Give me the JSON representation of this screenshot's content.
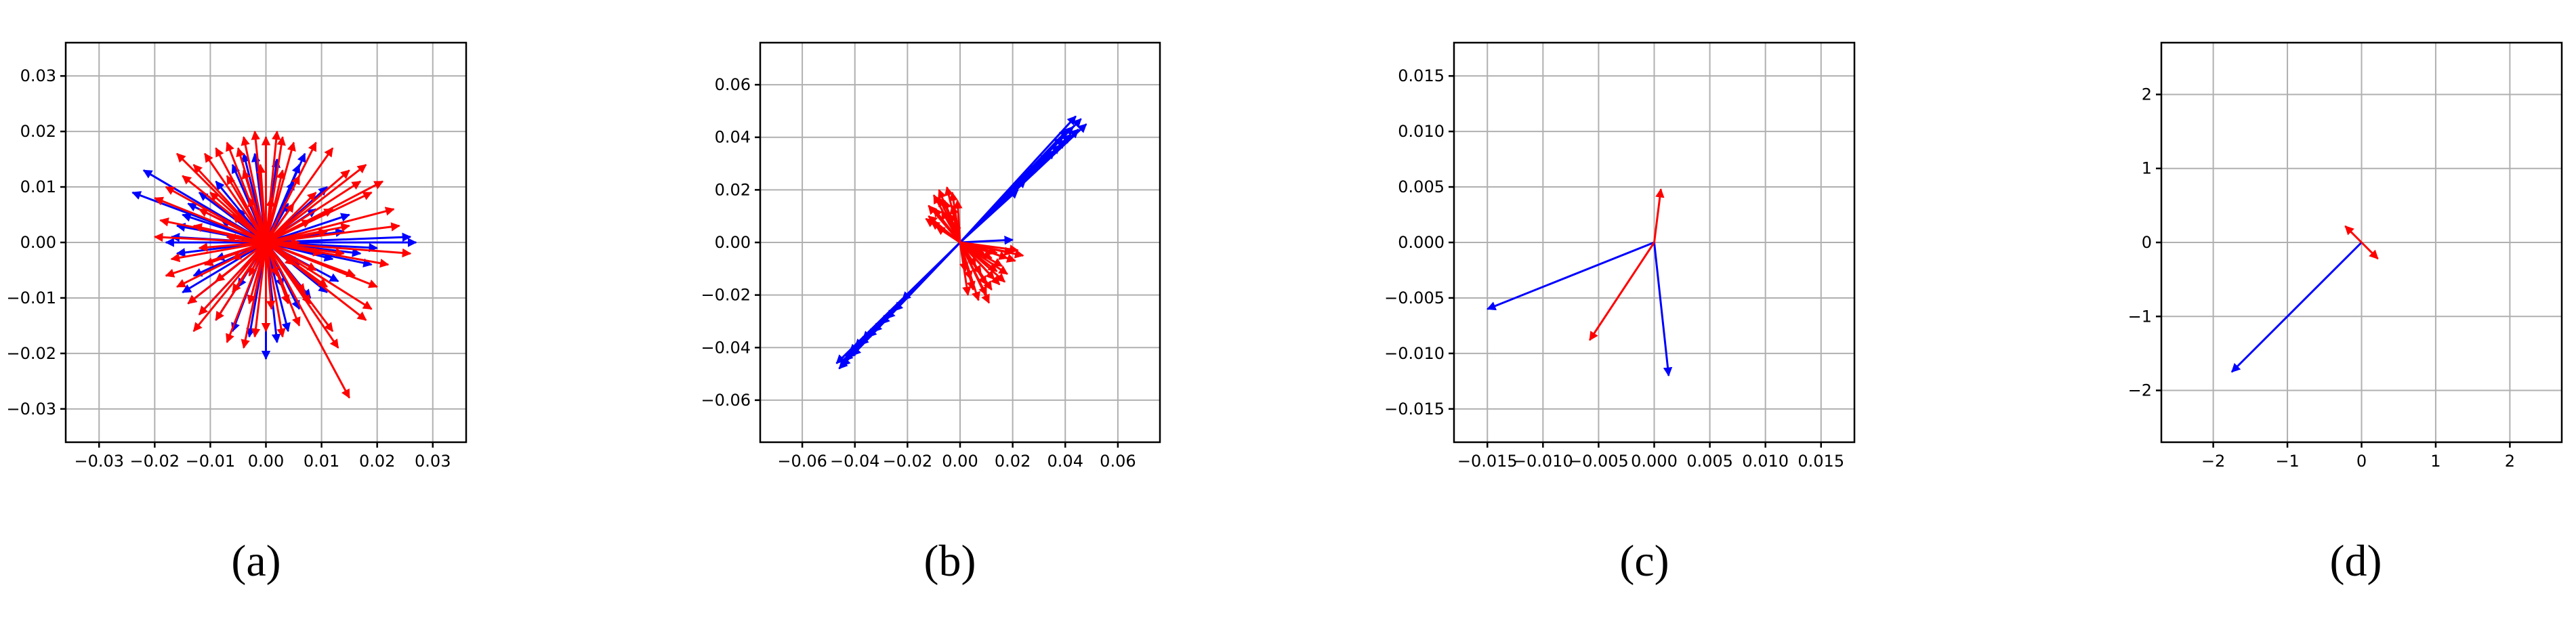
{
  "chart_data": [
    {
      "type": "quiver",
      "caption": "(a)",
      "xlim": [
        -0.036,
        0.036
      ],
      "ylim": [
        -0.036,
        0.036
      ],
      "xticks": [
        -0.03,
        -0.02,
        -0.01,
        0.0,
        0.01,
        0.02,
        0.03
      ],
      "yticks": [
        -0.03,
        -0.02,
        -0.01,
        0.0,
        0.01,
        0.02,
        0.03
      ],
      "xtick_labels": [
        "−0.03",
        "−0.02",
        "−0.01",
        "0.00",
        "0.01",
        "0.02",
        "0.03"
      ],
      "ytick_labels": [
        "−0.03",
        "−0.02",
        "−0.01",
        "0.00",
        "0.01",
        "0.02",
        "0.03"
      ],
      "grid": true,
      "origin": [
        0,
        0
      ],
      "series": [
        {
          "color": "#0000ff",
          "vectors": [
            [
              -0.024,
              0.009
            ],
            [
              -0.022,
              0.013
            ],
            [
              0.027,
              0.0
            ],
            [
              0.026,
              0.001
            ],
            [
              0.02,
              -0.001
            ],
            [
              0.019,
              -0.004
            ],
            [
              0.017,
              -0.002
            ],
            [
              0.015,
              0.005
            ],
            [
              0.011,
              0.01
            ],
            [
              0.007,
              0.016
            ],
            [
              0.006,
              0.014
            ],
            [
              0.005,
              0.011
            ],
            [
              0.002,
              0.015
            ],
            [
              -0.002,
              0.016
            ],
            [
              -0.004,
              0.016
            ],
            [
              -0.006,
              0.014
            ],
            [
              -0.009,
              0.011
            ],
            [
              -0.012,
              0.009
            ],
            [
              -0.014,
              0.007
            ],
            [
              -0.015,
              0.005
            ],
            [
              -0.016,
              0.003
            ],
            [
              -0.017,
              0.001
            ],
            [
              -0.016,
              -0.002
            ],
            [
              -0.013,
              -0.006
            ],
            [
              -0.015,
              -0.009
            ],
            [
              -0.014,
              -0.011
            ],
            [
              -0.012,
              -0.013
            ],
            [
              -0.009,
              -0.014
            ],
            [
              -0.006,
              -0.016
            ],
            [
              -0.003,
              -0.017
            ],
            [
              0.0,
              -0.021
            ],
            [
              0.002,
              -0.018
            ],
            [
              0.004,
              -0.016
            ],
            [
              0.006,
              -0.012
            ],
            [
              0.008,
              -0.01
            ],
            [
              0.011,
              -0.009
            ],
            [
              0.013,
              -0.007
            ],
            [
              0.012,
              -0.003
            ],
            [
              0.014,
              0.002
            ],
            [
              0.009,
              0.006
            ],
            [
              0.004,
              0.007
            ],
            [
              -0.005,
              0.006
            ],
            [
              -0.008,
              0.004
            ],
            [
              -0.009,
              -0.003
            ],
            [
              -0.005,
              -0.008
            ],
            [
              0.003,
              -0.008
            ],
            [
              0.006,
              -0.004
            ],
            [
              -0.018,
              0.0
            ]
          ]
        },
        {
          "color": "#ff0000",
          "vectors": [
            [
              0.015,
              -0.028
            ],
            [
              0.013,
              -0.019
            ],
            [
              0.012,
              -0.016
            ],
            [
              0.018,
              -0.014
            ],
            [
              0.02,
              -0.008
            ],
            [
              0.026,
              -0.002
            ],
            [
              0.024,
              0.003
            ],
            [
              0.023,
              0.006
            ],
            [
              0.019,
              0.009
            ],
            [
              0.017,
              0.011
            ],
            [
              0.015,
              0.013
            ],
            [
              0.018,
              0.014
            ],
            [
              0.012,
              0.017
            ],
            [
              0.009,
              0.018
            ],
            [
              0.005,
              0.018
            ],
            [
              0.003,
              0.019
            ],
            [
              0.002,
              0.02
            ],
            [
              0.0,
              0.019
            ],
            [
              -0.002,
              0.02
            ],
            [
              -0.004,
              0.019
            ],
            [
              -0.007,
              0.018
            ],
            [
              -0.009,
              0.017
            ],
            [
              -0.011,
              0.016
            ],
            [
              -0.013,
              0.014
            ],
            [
              -0.015,
              0.012
            ],
            [
              -0.018,
              0.01
            ],
            [
              -0.02,
              0.008
            ],
            [
              -0.019,
              0.004
            ],
            [
              -0.02,
              0.001
            ],
            [
              -0.017,
              -0.003
            ],
            [
              -0.018,
              -0.006
            ],
            [
              -0.016,
              -0.008
            ],
            [
              -0.014,
              -0.011
            ],
            [
              -0.012,
              -0.013
            ],
            [
              -0.009,
              -0.014
            ],
            [
              -0.007,
              -0.018
            ],
            [
              -0.004,
              -0.019
            ],
            [
              -0.002,
              -0.017
            ],
            [
              0.0,
              -0.016
            ],
            [
              0.003,
              -0.017
            ],
            [
              0.006,
              -0.015
            ],
            [
              0.008,
              -0.011
            ],
            [
              0.011,
              -0.008
            ],
            [
              0.016,
              -0.006
            ],
            [
              0.014,
              -0.002
            ],
            [
              0.015,
              0.003
            ],
            [
              0.012,
              0.006
            ],
            [
              0.009,
              0.009
            ],
            [
              0.006,
              0.012
            ],
            [
              0.003,
              0.013
            ],
            [
              -0.001,
              0.014
            ],
            [
              -0.004,
              0.013
            ],
            [
              -0.007,
              0.012
            ],
            [
              -0.01,
              0.009
            ],
            [
              -0.012,
              0.006
            ],
            [
              -0.013,
              0.003
            ],
            [
              -0.012,
              -0.001
            ],
            [
              -0.011,
              -0.004
            ],
            [
              -0.009,
              -0.007
            ],
            [
              -0.006,
              -0.009
            ],
            [
              -0.003,
              -0.011
            ],
            [
              0.001,
              -0.012
            ],
            [
              0.004,
              -0.011
            ],
            [
              0.007,
              -0.009
            ],
            [
              0.009,
              -0.005
            ],
            [
              0.01,
              -0.002
            ],
            [
              0.011,
              0.002
            ],
            [
              0.008,
              0.004
            ],
            [
              0.005,
              0.007
            ],
            [
              0.001,
              0.008
            ],
            [
              -0.003,
              0.008
            ],
            [
              -0.006,
              0.005
            ],
            [
              -0.007,
              0.001
            ],
            [
              -0.006,
              -0.003
            ],
            [
              -0.003,
              -0.006
            ],
            [
              0.002,
              -0.006
            ],
            [
              0.005,
              -0.004
            ],
            [
              0.006,
              0.0
            ],
            [
              0.019,
              -0.012
            ],
            [
              -0.016,
              0.016
            ],
            [
              0.021,
              0.011
            ],
            [
              -0.013,
              -0.016
            ],
            [
              0.022,
              -0.004
            ],
            [
              -0.005,
              0.017
            ]
          ]
        }
      ]
    },
    {
      "type": "quiver",
      "caption": "(b)",
      "xlim": [
        -0.076,
        0.076
      ],
      "ylim": [
        -0.076,
        0.076
      ],
      "xticks": [
        -0.06,
        -0.04,
        -0.02,
        0.0,
        0.02,
        0.04,
        0.06
      ],
      "yticks": [
        -0.06,
        -0.04,
        -0.02,
        0.0,
        0.02,
        0.04,
        0.06
      ],
      "xtick_labels": [
        "−0.06",
        "−0.04",
        "−0.02",
        "0.00",
        "0.02",
        "0.04",
        "0.06"
      ],
      "ytick_labels": [
        "−0.06",
        "−0.04",
        "−0.02",
        "0.00",
        "0.02",
        "0.04",
        "0.06"
      ],
      "grid": true,
      "origin": [
        0,
        0
      ],
      "series": [
        {
          "color": "#0000ff",
          "vectors": [
            [
              0.048,
              0.045
            ],
            [
              0.046,
              0.047
            ],
            [
              0.044,
              0.048
            ],
            [
              0.045,
              0.043
            ],
            [
              0.043,
              0.044
            ],
            [
              0.042,
              0.041
            ],
            [
              0.041,
              0.043
            ],
            [
              0.04,
              0.039
            ],
            [
              0.039,
              0.04
            ],
            [
              0.038,
              0.037
            ],
            [
              0.036,
              0.035
            ],
            [
              0.034,
              0.034
            ],
            [
              0.03,
              0.03
            ],
            [
              0.025,
              0.024
            ],
            [
              0.022,
              0.02
            ],
            [
              -0.046,
              -0.048
            ],
            [
              -0.047,
              -0.046
            ],
            [
              -0.045,
              -0.047
            ],
            [
              -0.044,
              -0.045
            ],
            [
              -0.043,
              -0.044
            ],
            [
              -0.042,
              -0.042
            ],
            [
              -0.041,
              -0.043
            ],
            [
              -0.04,
              -0.04
            ],
            [
              -0.038,
              -0.039
            ],
            [
              -0.037,
              -0.037
            ],
            [
              -0.035,
              -0.036
            ],
            [
              -0.033,
              -0.034
            ],
            [
              -0.03,
              -0.031
            ],
            [
              -0.028,
              -0.029
            ],
            [
              -0.025,
              -0.026
            ],
            [
              -0.022,
              -0.022
            ],
            [
              0.02,
              0.001
            ]
          ]
        },
        {
          "color": "#ff0000",
          "vectors": [
            [
              -0.012,
              0.014
            ],
            [
              -0.01,
              0.018
            ],
            [
              -0.008,
              0.02
            ],
            [
              -0.005,
              0.021
            ],
            [
              -0.003,
              0.019
            ],
            [
              -0.001,
              0.016
            ],
            [
              -0.012,
              0.01
            ],
            [
              -0.011,
              0.008
            ],
            [
              -0.009,
              0.006
            ],
            [
              -0.007,
              0.012
            ],
            [
              -0.006,
              0.016
            ],
            [
              -0.004,
              0.011
            ],
            [
              -0.002,
              0.008
            ],
            [
              -0.01,
              0.013
            ],
            [
              -0.013,
              0.009
            ],
            [
              0.014,
              -0.011
            ],
            [
              0.013,
              -0.014
            ],
            [
              0.012,
              -0.018
            ],
            [
              0.01,
              -0.02
            ],
            [
              0.007,
              -0.022
            ],
            [
              0.005,
              -0.018
            ],
            [
              0.004,
              -0.014
            ],
            [
              0.016,
              -0.009
            ],
            [
              0.018,
              -0.006
            ],
            [
              0.02,
              -0.004
            ],
            [
              0.022,
              -0.003
            ],
            [
              0.012,
              -0.006
            ],
            [
              0.008,
              -0.012
            ],
            [
              0.01,
              -0.016
            ],
            [
              0.014,
              -0.004
            ],
            [
              0.018,
              -0.012
            ],
            [
              0.021,
              -0.007
            ],
            [
              0.003,
              -0.02
            ],
            [
              0.006,
              -0.009
            ],
            [
              0.015,
              -0.016
            ],
            [
              0.024,
              -0.005
            ],
            [
              0.017,
              -0.015
            ],
            [
              0.011,
              -0.023
            ],
            [
              -0.008,
              0.017
            ],
            [
              -0.003,
              0.014
            ],
            [
              0.002,
              -0.011
            ],
            [
              0.009,
              -0.004
            ]
          ]
        }
      ]
    },
    {
      "type": "quiver",
      "caption": "(c)",
      "xlim": [
        -0.018,
        0.018
      ],
      "ylim": [
        -0.018,
        0.018
      ],
      "xticks": [
        -0.015,
        -0.01,
        -0.005,
        0.0,
        0.005,
        0.01,
        0.015
      ],
      "yticks": [
        -0.015,
        -0.01,
        -0.005,
        0.0,
        0.005,
        0.01,
        0.015
      ],
      "xtick_labels": [
        "−0.015",
        "−0.010",
        "−0.005",
        "0.000",
        "0.005",
        "0.010",
        "0.015"
      ],
      "ytick_labels": [
        "−0.015",
        "−0.010",
        "−0.005",
        "0.000",
        "0.005",
        "0.010",
        "0.015"
      ],
      "grid": true,
      "origin": [
        0,
        0
      ],
      "series": [
        {
          "color": "#0000ff",
          "vectors": [
            [
              -0.015,
              -0.006
            ],
            [
              0.0013,
              -0.012
            ]
          ]
        },
        {
          "color": "#ff0000",
          "vectors": [
            [
              0.0006,
              0.0048
            ],
            [
              -0.0058,
              -0.0088
            ]
          ]
        }
      ]
    },
    {
      "type": "quiver",
      "caption": "(d)",
      "xlim": [
        -2.7,
        2.7
      ],
      "ylim": [
        -2.7,
        2.7
      ],
      "xticks": [
        -2,
        -1,
        0,
        1,
        2
      ],
      "yticks": [
        -2,
        -1,
        0,
        1,
        2
      ],
      "xtick_labels": [
        "−2",
        "−1",
        "0",
        "1",
        "2"
      ],
      "ytick_labels": [
        "−2",
        "−1",
        "0",
        "1",
        "2"
      ],
      "grid": true,
      "origin": [
        0,
        0
      ],
      "series": [
        {
          "color": "#0000ff",
          "vectors": [
            [
              -1.75,
              -1.75
            ]
          ]
        },
        {
          "color": "#ff0000",
          "vectors": [
            [
              -0.22,
              0.22
            ],
            [
              0.22,
              -0.22
            ]
          ]
        }
      ]
    }
  ]
}
